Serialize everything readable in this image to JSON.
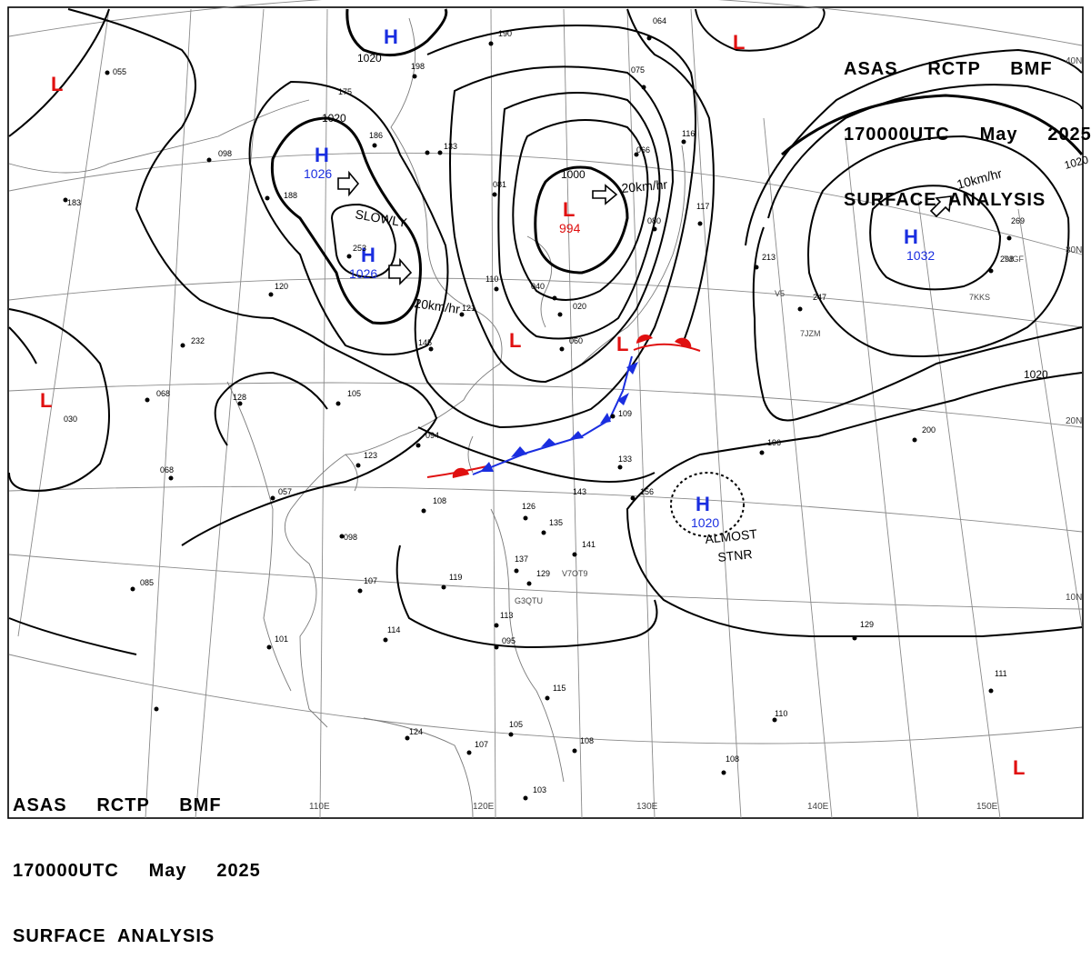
{
  "header": {
    "line1": "ASAS     RCTP     BMF",
    "line2": "170000UTC     May     2025",
    "line3": "SURFACE  ANALYSIS"
  },
  "lat_labels": [
    "40N",
    "30N",
    "20N",
    "10N"
  ],
  "lon_labels": [
    "110E",
    "120E",
    "130E",
    "140E",
    "150E"
  ],
  "isobar_labels": [
    "1020",
    "1020",
    "1000",
    "1020",
    "1020"
  ],
  "pressure_systems": [
    {
      "type": "H",
      "value": "",
      "color": "#1a2ee0"
    },
    {
      "type": "H",
      "value": "1026",
      "color": "#1a2ee0"
    },
    {
      "type": "H",
      "value": "1026",
      "color": "#1a2ee0"
    },
    {
      "type": "H",
      "value": "1032",
      "color": "#1a2ee0"
    },
    {
      "type": "H",
      "value": "1020",
      "color": "#1a2ee0"
    },
    {
      "type": "L",
      "value": "994",
      "color": "#e01010"
    },
    {
      "type": "L",
      "value": "",
      "color": "#e01010"
    },
    {
      "type": "L",
      "value": "",
      "color": "#e01010"
    },
    {
      "type": "L",
      "value": "",
      "color": "#e01010"
    },
    {
      "type": "L",
      "value": "",
      "color": "#e01010"
    },
    {
      "type": "L",
      "value": "",
      "color": "#e01010"
    },
    {
      "type": "L",
      "value": "",
      "color": "#e01010"
    }
  ],
  "movement_labels": [
    "SLOWLY",
    "20km/hr",
    "20km/hr",
    "10km/hr",
    "ALMOST",
    "STNR"
  ],
  "station_numbers": [
    "190",
    "198",
    "175",
    "186",
    "133",
    "081",
    "064",
    "075",
    "066",
    "116",
    "080",
    "117",
    "040",
    "110",
    "121",
    "020",
    "060",
    "232",
    "145",
    "128",
    "068",
    "105",
    "094",
    "030",
    "120",
    "123",
    "108",
    "126",
    "135",
    "141",
    "137",
    "129",
    "119",
    "107",
    "114",
    "101",
    "113",
    "095",
    "115",
    "105",
    "108",
    "124",
    "107",
    "103",
    "110",
    "111",
    "108",
    "129",
    "196",
    "200",
    "247",
    "213",
    "269",
    "298",
    "057",
    "085",
    "068",
    "055",
    "098",
    "183",
    "188",
    "143",
    "109",
    "156",
    "133",
    "098",
    "253"
  ],
  "station_ids": [
    "V7OT9",
    "G3QTU",
    "7KKS",
    "7JGF",
    "7JZM",
    "V5"
  ],
  "colors": {
    "high": "#1a2ee0",
    "low": "#e01010",
    "cold_front": "#1a2ee0",
    "warm_front": "#e01010",
    "isobar": "#000000",
    "grid": "#8a8a8a",
    "coast": "#7a7a7a"
  }
}
